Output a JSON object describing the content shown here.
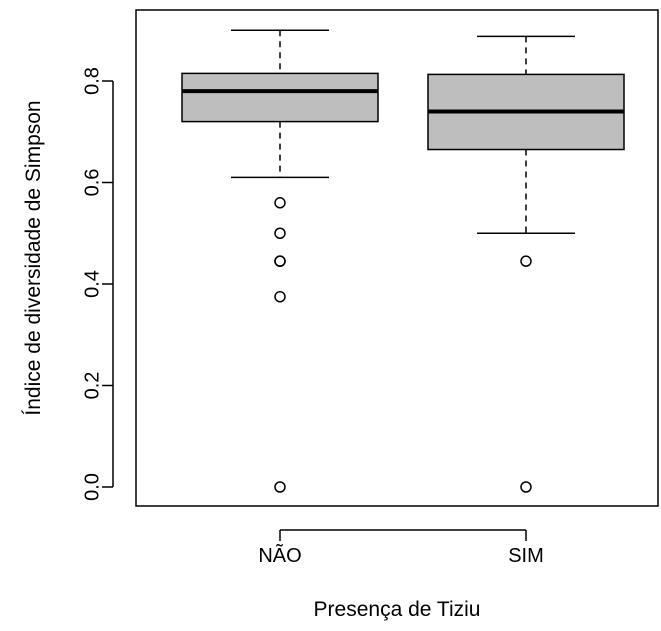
{
  "chart_data": {
    "type": "boxplot",
    "xlabel": "Presença de Tiziu",
    "ylabel": "Índice de diversidade de Simpson",
    "categories": [
      "NÃO",
      "SIM"
    ],
    "ylim": [
      0.0,
      0.9
    ],
    "yticks": [
      0.0,
      0.2,
      0.4,
      0.6,
      0.8
    ],
    "ytick_labels": [
      "0.0",
      "0.2",
      "0.4",
      "0.6",
      "0.8"
    ],
    "grid": false,
    "box_fill": "#bebebe",
    "series": [
      {
        "category": "NÃO",
        "whisker_low": 0.61,
        "q1": 0.72,
        "median": 0.78,
        "q3": 0.815,
        "whisker_high": 0.9,
        "outliers": [
          0.56,
          0.5,
          0.445,
          0.445,
          0.375,
          0.0
        ]
      },
      {
        "category": "SIM",
        "whisker_low": 0.5,
        "q1": 0.665,
        "median": 0.74,
        "q3": 0.813,
        "whisker_high": 0.888,
        "outliers": [
          0.445,
          0.0
        ]
      }
    ]
  }
}
